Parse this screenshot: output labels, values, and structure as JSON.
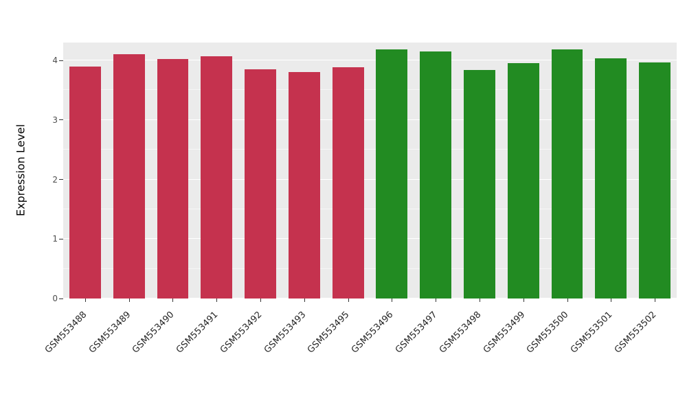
{
  "chart_data": {
    "type": "bar",
    "title": "",
    "xlabel": "",
    "ylabel": "Expression Level",
    "ylim": [
      0,
      4.3
    ],
    "yticks": [
      0,
      1,
      2,
      3,
      4
    ],
    "grid": true,
    "legend_position": "none",
    "panel_bg": "#EBEBEB",
    "grid_color": "#FFFFFF",
    "group_colors": {
      "left_group": "#C5324E",
      "right_group": "#228B22"
    },
    "categories": [
      "GSM553488",
      "GSM553489",
      "GSM553490",
      "GSM553491",
      "GSM553492",
      "GSM553493",
      "GSM553495",
      "GSM553496",
      "GSM553497",
      "GSM553498",
      "GSM553499",
      "GSM553500",
      "GSM553501",
      "GSM553502"
    ],
    "values": [
      3.9,
      4.1,
      4.02,
      4.07,
      3.85,
      3.81,
      3.88,
      4.18,
      4.15,
      3.84,
      3.95,
      4.18,
      4.04,
      3.97
    ],
    "bar_colors": [
      "#C5324E",
      "#C5324E",
      "#C5324E",
      "#C5324E",
      "#C5324E",
      "#C5324E",
      "#C5324E",
      "#228B22",
      "#228B22",
      "#228B22",
      "#228B22",
      "#228B22",
      "#228B22",
      "#228B22"
    ]
  }
}
